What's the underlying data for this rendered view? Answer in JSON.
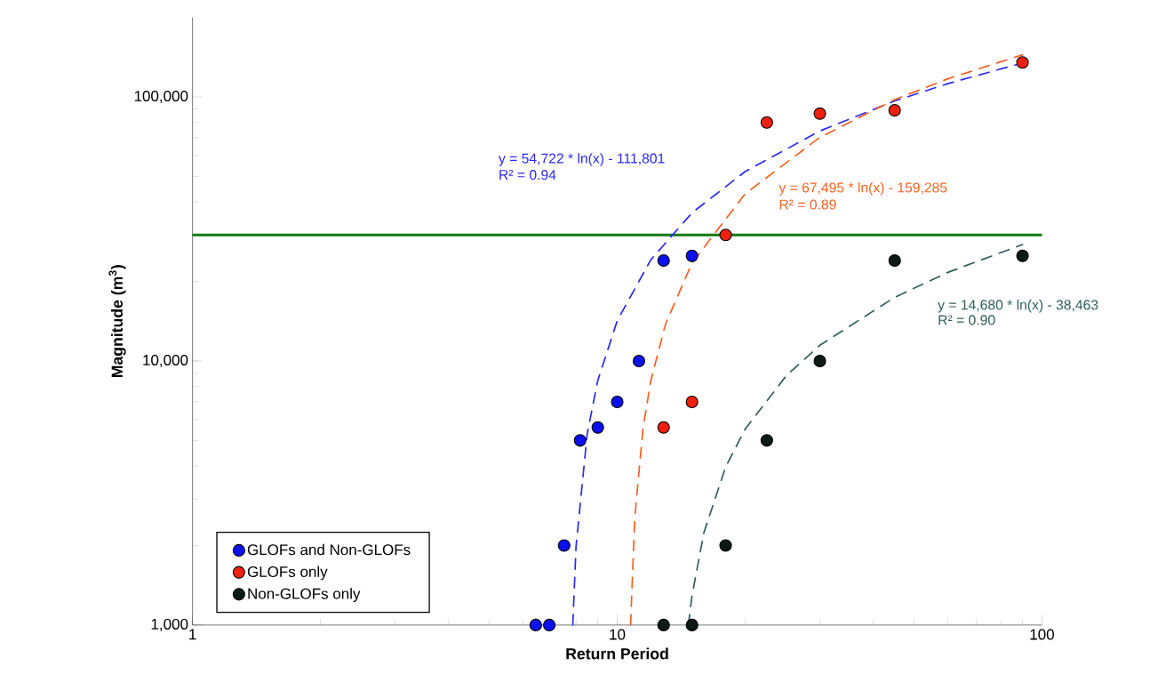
{
  "chart_data": {
    "type": "scatter",
    "xlabel": "Return Period",
    "ylabel": "Magnitude (m$^{3}$)",
    "log": "xy",
    "legend": "bottom left",
    "xlim": [
      1,
      100
    ],
    "ylim": [
      1000,
      200000
    ],
    "xticks": [
      1,
      10,
      100
    ],
    "yticks": [
      {
        "value": 1000,
        "label": "1,000"
      },
      {
        "value": 10000,
        "label": "10,000"
      },
      {
        "value": 100000,
        "label": "100,000"
      }
    ],
    "ref_lines": [
      {
        "axis": "y",
        "value": 30000,
        "color": "#127a12"
      }
    ],
    "series": [
      {
        "name": "GLOFs and Non-GLOFs",
        "marker": "circle",
        "color": "#0a10ee",
        "x": [
          6.43,
          6.92,
          7.5,
          8.18,
          9,
          10,
          11.25,
          12.86,
          15
        ],
        "values": [
          1000,
          1000,
          2000,
          5000,
          5600,
          7000,
          10000,
          24000,
          25000
        ]
      },
      {
        "name": "GLOFs only",
        "marker": "circle",
        "color": "#f02010",
        "x": [
          12.86,
          15,
          18,
          22.5,
          30,
          45,
          90
        ],
        "values": [
          5600,
          7000,
          30000,
          80000,
          86500,
          89000,
          135000
        ]
      },
      {
        "name": "Non-GLOFs only",
        "marker": "circle",
        "color": "#0a1a14",
        "x": [
          12.86,
          15,
          18,
          22.5,
          30,
          45,
          90
        ],
        "values": [
          1000,
          1000,
          2000,
          5000,
          10000,
          24000,
          25000
        ]
      },
      {
        "type": "line",
        "marker": "none",
        "line_style": "dashed",
        "color": "#2a2af5",
        "x": [
          7.86,
          8,
          8.5,
          9,
          10,
          12,
          15,
          20,
          30,
          45,
          60,
          90
        ],
        "values": [
          1000,
          1988,
          5308,
          8435,
          14201,
          24178,
          36389,
          52131,
          74319,
          96507,
          112249,
          134435
        ]
      },
      {
        "type": "line",
        "marker": "none",
        "line_style": "dashed",
        "color": "#fa6020",
        "x": [
          10.75,
          11,
          11.5,
          12,
          13,
          15,
          20,
          30,
          45,
          60,
          90
        ],
        "values": [
          1000,
          2561,
          5561,
          8433,
          13834,
          23495,
          42912,
          70279,
          97645,
          117062,
          144428
        ]
      },
      {
        "type": "line",
        "marker": "none",
        "line_style": "dashed",
        "color": "#2f5f5a",
        "x": [
          14.71,
          15,
          16,
          18,
          20,
          25,
          30,
          45,
          60,
          90
        ],
        "values": [
          1000,
          1291,
          2239,
          3968,
          5514,
          8790,
          11466,
          17419,
          21642,
          27594
        ]
      }
    ],
    "annotations": [
      "y = 54,722 * ln(x) -  111,801",
      "R² = 0.94",
      "y = 67,495 * ln(x) -  159,285",
      "R² = 0.89",
      "y = 14,680 * ln(x) -  38,463",
      "R² = 0.90"
    ]
  }
}
